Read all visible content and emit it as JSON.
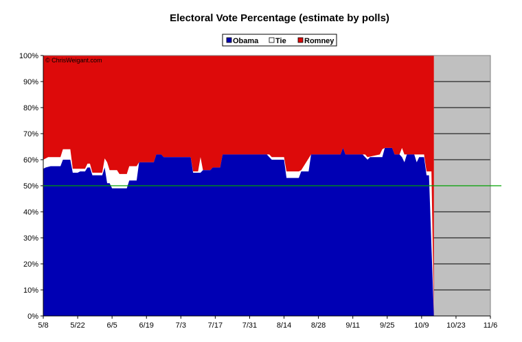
{
  "chart_data": {
    "type": "area",
    "title": "Electoral Vote Percentage (estimate by polls)",
    "watermark": "© ChrisWeigant.com",
    "legend": {
      "placement": "top-center",
      "entries": [
        {
          "name": "Obama",
          "color": "#0000b4"
        },
        {
          "name": "Tie",
          "color": "#ffffff"
        },
        {
          "name": "Romney",
          "color": "#dd0a0a"
        }
      ]
    },
    "x_ticks": [
      "5/8",
      "5/22",
      "6/5",
      "6/19",
      "7/3",
      "7/17",
      "7/31",
      "8/14",
      "8/28",
      "9/11",
      "9/25",
      "10/9",
      "10/23",
      "11/6"
    ],
    "y_ticks": [
      "0%",
      "10%",
      "20%",
      "30%",
      "40%",
      "50%",
      "60%",
      "70%",
      "80%",
      "90%",
      "100%"
    ],
    "xlim_days": [
      0,
      182
    ],
    "ylim": [
      0,
      100
    ],
    "grid": "horizontal",
    "reference_line": {
      "value": 50,
      "color": "#00a000"
    },
    "future_shading": {
      "from_day": 159,
      "to_day": 182,
      "color": "#c0c0c0"
    },
    "series": [
      {
        "name": "Obama",
        "color": "#0000b4",
        "values": [
          [
            0,
            56.5
          ],
          [
            1,
            57
          ],
          [
            3,
            57.5
          ],
          [
            7,
            57.5
          ],
          [
            8,
            60
          ],
          [
            11,
            60
          ],
          [
            12,
            55
          ],
          [
            14,
            55
          ],
          [
            15,
            55.5
          ],
          [
            17,
            55.5
          ],
          [
            18,
            57
          ],
          [
            19,
            57
          ],
          [
            20,
            54
          ],
          [
            24,
            54
          ],
          [
            25,
            57
          ],
          [
            26,
            51
          ],
          [
            27,
            51
          ],
          [
            28,
            49
          ],
          [
            34,
            49
          ],
          [
            35,
            52
          ],
          [
            38,
            52
          ],
          [
            39,
            59
          ],
          [
            45,
            59
          ],
          [
            46,
            62
          ],
          [
            48,
            62
          ],
          [
            49,
            61
          ],
          [
            60,
            61
          ],
          [
            61,
            55
          ],
          [
            64,
            55
          ],
          [
            65,
            56
          ],
          [
            68,
            56
          ],
          [
            69,
            57
          ],
          [
            72,
            57
          ],
          [
            73,
            62
          ],
          [
            91,
            62
          ],
          [
            92,
            61
          ],
          [
            93,
            60
          ],
          [
            98,
            60
          ],
          [
            99,
            53
          ],
          [
            104,
            53
          ],
          [
            105,
            55.5
          ],
          [
            108,
            55.5
          ],
          [
            109,
            62
          ],
          [
            121,
            62
          ],
          [
            122,
            64.5
          ],
          [
            123,
            62
          ],
          [
            130,
            62
          ],
          [
            131,
            61
          ],
          [
            132,
            60
          ],
          [
            133,
            61
          ],
          [
            138,
            61
          ],
          [
            139,
            64.5
          ],
          [
            142,
            64.5
          ],
          [
            143,
            62
          ],
          [
            145,
            62
          ],
          [
            146,
            61
          ],
          [
            147,
            59
          ],
          [
            148,
            62
          ],
          [
            151,
            62
          ],
          [
            152,
            59
          ],
          [
            153,
            61
          ],
          [
            155,
            61
          ],
          [
            156,
            54
          ],
          [
            157,
            54
          ],
          [
            159,
            0
          ]
        ]
      },
      {
        "name": "Tie",
        "color": "#ffffff",
        "values": [
          [
            0,
            60
          ],
          [
            1,
            60.5
          ],
          [
            2,
            61
          ],
          [
            7,
            61
          ],
          [
            8,
            64
          ],
          [
            11,
            64
          ],
          [
            12,
            56.5
          ],
          [
            17,
            56.5
          ],
          [
            18,
            58.5
          ],
          [
            19,
            58.5
          ],
          [
            20,
            55
          ],
          [
            24,
            55
          ],
          [
            25,
            60.5
          ],
          [
            26,
            59
          ],
          [
            27,
            56
          ],
          [
            30,
            56
          ],
          [
            31,
            54.5
          ],
          [
            34,
            54.5
          ],
          [
            35,
            57.5
          ],
          [
            38,
            57.5
          ],
          [
            39,
            59
          ],
          [
            45,
            59
          ],
          [
            46,
            62
          ],
          [
            48,
            62
          ],
          [
            49,
            61
          ],
          [
            60,
            61
          ],
          [
            61,
            55.5
          ],
          [
            63,
            55.5
          ],
          [
            64,
            61
          ],
          [
            65,
            56
          ],
          [
            68,
            56
          ],
          [
            69,
            57
          ],
          [
            72,
            57
          ],
          [
            73,
            62
          ],
          [
            91,
            62
          ],
          [
            92,
            62
          ],
          [
            93,
            61
          ],
          [
            98,
            61
          ],
          [
            99,
            55.5
          ],
          [
            104,
            55.5
          ],
          [
            105,
            56
          ],
          [
            108,
            60.5
          ],
          [
            109,
            62
          ],
          [
            121,
            62
          ],
          [
            122,
            64.5
          ],
          [
            123,
            62
          ],
          [
            130,
            62
          ],
          [
            131,
            62
          ],
          [
            132,
            61
          ],
          [
            137,
            62
          ],
          [
            138,
            64
          ],
          [
            139,
            64.5
          ],
          [
            142,
            64.5
          ],
          [
            143,
            62
          ],
          [
            145,
            62
          ],
          [
            146,
            64.5
          ],
          [
            147,
            62
          ],
          [
            148,
            62
          ],
          [
            151,
            62
          ],
          [
            152,
            62
          ],
          [
            154,
            62
          ],
          [
            155,
            62
          ],
          [
            156,
            55.5
          ],
          [
            158,
            55.5
          ],
          [
            159,
            0
          ]
        ]
      },
      {
        "name": "Romney",
        "color": "#dd0a0a",
        "values": [
          [
            0,
            100
          ],
          [
            159,
            100
          ]
        ]
      }
    ]
  }
}
